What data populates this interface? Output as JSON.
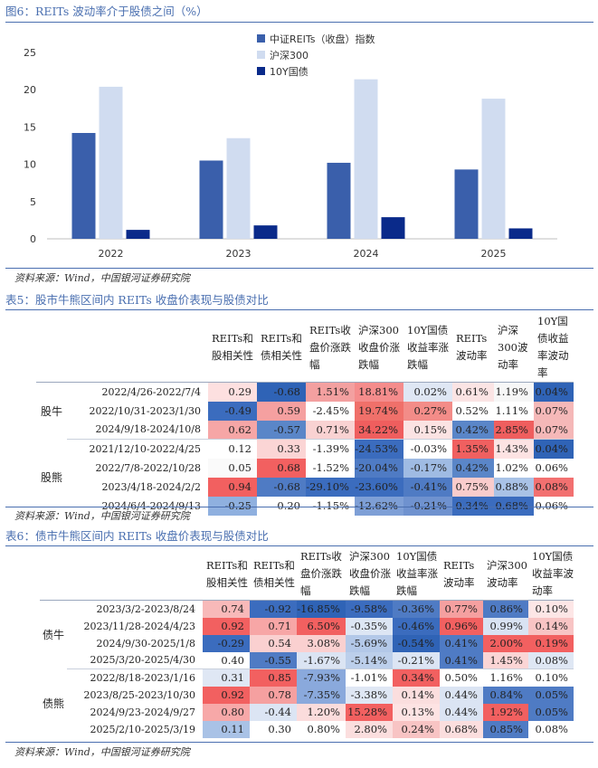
{
  "figure": {
    "title": "图6：REITs 波动率介于股债之间（%）",
    "source": "资料来源：Wind，中国银河证券研究院",
    "chart_data": {
      "type": "bar",
      "categories": [
        "2022",
        "2023",
        "2024",
        "2025"
      ],
      "series": [
        {
          "name": "中证REITs（收盘）指数",
          "color": "#3a5fab",
          "values": [
            14.2,
            10.5,
            10.2,
            9.3
          ]
        },
        {
          "name": "沪深300",
          "color": "#d0dcf0",
          "values": [
            20.4,
            13.5,
            21.4,
            18.8
          ]
        },
        {
          "name": "10Y国债",
          "color": "#0a2a8a",
          "values": [
            1.2,
            1.8,
            2.9,
            1.4
          ]
        }
      ],
      "ylim": [
        0,
        25
      ],
      "yticks": [
        "0",
        "5",
        "10",
        "15",
        "20",
        "25"
      ],
      "legend": "top-right",
      "grid": false
    }
  },
  "table5": {
    "title": "表5：股市牛熊区间内 REITs 收盘价表现与股债对比",
    "source": "资料来源：Wind，中国银河证券研究院",
    "headers": [
      "REITs和股相关性",
      "REITs和债相关性",
      "REITs收盘价涨跌幅",
      "沪深300收盘价涨跌幅",
      "10Y国债收益率涨跌幅",
      "REITs波动率",
      "沪深300波动率",
      "10Y国债收益率波动率"
    ],
    "groups": [
      {
        "label": "股牛",
        "rows": [
          {
            "period": "2022/4/26-2022/7/4",
            "values": [
              "0.29",
              "-0.68",
              "1.51%",
              "18.81%",
              "0.02%",
              "0.61%",
              "1.19%",
              "0.04%"
            ]
          },
          {
            "period": "2022/10/31-2023/1/30",
            "values": [
              "-0.49",
              "0.59",
              "-2.45%",
              "19.74%",
              "0.27%",
              "0.52%",
              "1.11%",
              "0.07%"
            ]
          },
          {
            "period": "2024/9/18-2024/10/8",
            "values": [
              "0.62",
              "-0.57",
              "0.71%",
              "34.22%",
              "0.15%",
              "0.42%",
              "2.85%",
              "0.07%"
            ]
          }
        ]
      },
      {
        "label": "股熊",
        "rows": [
          {
            "period": "2021/12/10-2022/4/25",
            "values": [
              "0.12",
              "0.33",
              "-1.39%",
              "-24.53%",
              "-0.03%",
              "1.35%",
              "1.43%",
              "0.04%"
            ]
          },
          {
            "period": "2022/7/8-2022/10/28",
            "values": [
              "0.05",
              "0.68",
              "-1.52%",
              "-20.04%",
              "-0.17%",
              "0.42%",
              "1.02%",
              "0.06%"
            ]
          },
          {
            "period": "2023/4/18-2024/2/2",
            "values": [
              "0.94",
              "-0.68",
              "-29.10%",
              "-23.60%",
              "-0.41%",
              "0.75%",
              "0.88%",
              "0.08%"
            ]
          },
          {
            "period": "2024/6/4-2024/9/13",
            "values": [
              "-0.25",
              "0.20",
              "-1.15%",
              "-12.62%",
              "-0.21%",
              "0.34%",
              "0.68%",
              "0.06%"
            ]
          }
        ]
      }
    ],
    "colors": [
      [
        [
          "#fde0e0",
          "#2f63b6",
          "#f3a0a0",
          "#f58c8c",
          "#dfe7f4",
          "#fbe4e4",
          "#f7f7f7",
          "#2f63b6"
        ],
        [
          "#3b6cbe",
          "#f5a0a0",
          "#ffffff",
          "#f0706a",
          "#f38c88",
          "#ffffff",
          "#ffffff",
          "#f5b8b8"
        ],
        [
          "#f6a6a6",
          "#5a86c8",
          "#f9d2d2",
          "#ef5e5e",
          "#fbe3e3",
          "#5a86c8",
          "#ef5e5e",
          "#f5b8b8"
        ]
      ],
      [
        [
          "#ffffff",
          "#fbd5d5",
          "#ffffff",
          "#3b6cbe",
          "#ffffff",
          "#f06060",
          "#fde3e3",
          "#2f63b6"
        ],
        [
          "#fafafa",
          "#f26060",
          "#ffffff",
          "#4f7bc4",
          "#9fbbe3",
          "#5a86c8",
          "#ffffff",
          "#ffffff"
        ],
        [
          "#f26060",
          "#4f7bc4",
          "#3b6cbe",
          "#3b6cbe",
          "#4f7bc4",
          "#f9cccc",
          "#a9c2e6",
          "#f27070"
        ],
        [
          "#8fb0df",
          "#ffffff",
          "#ffffff",
          "#7e9fd6",
          "#6f92cf",
          "#3b6cbe",
          "#3b6cbe",
          "#ffffff"
        ]
      ]
    ]
  },
  "table6": {
    "title": "表6：债市牛熊区间内 REITs 收盘价表现与股债对比",
    "source": "资料来源：Wind，中国银河证券研究院",
    "headers": [
      "REITs和股相关性",
      "REITs和债相关性",
      "REITs收盘价涨跌幅",
      "沪深300收盘价涨跌幅",
      "10Y国债收益率涨跌幅",
      "REITs波动率",
      "沪深300波动率",
      "10Y国债收益率波动率"
    ],
    "groups": [
      {
        "label": "债牛",
        "rows": [
          {
            "period": "2023/3/2-2023/8/24",
            "values": [
              "0.74",
              "-0.92",
              "-16.85%",
              "-9.58%",
              "-0.36%",
              "0.77%",
              "0.86%",
              "0.10%"
            ]
          },
          {
            "period": "2023/11/28-2024/4/23",
            "values": [
              "0.92",
              "0.71",
              "6.50%",
              "-0.35%",
              "-0.46%",
              "0.96%",
              "0.99%",
              "0.14%"
            ]
          },
          {
            "period": "2024/9/30-2025/1/8",
            "values": [
              "-0.29",
              "0.54",
              "3.08%",
              "-5.69%",
              "-0.54%",
              "0.41%",
              "2.00%",
              "0.19%"
            ]
          },
          {
            "period": "2025/3/20-2025/4/30",
            "values": [
              "0.40",
              "-0.55",
              "-1.67%",
              "-5.14%",
              "-0.21%",
              "0.41%",
              "1.45%",
              "0.08%"
            ]
          }
        ]
      },
      {
        "label": "债熊",
        "rows": [
          {
            "period": "2022/8/18-2023/1/16",
            "values": [
              "0.31",
              "0.85",
              "-7.93%",
              "-1.01%",
              "0.34%",
              "0.50%",
              "1.16%",
              "0.10%"
            ]
          },
          {
            "period": "2023/8/25-2023/10/30",
            "values": [
              "0.92",
              "0.78",
              "-7.35%",
              "-3.38%",
              "0.14%",
              "0.44%",
              "0.84%",
              "0.05%"
            ]
          },
          {
            "period": "2024/9/23-2024/9/27",
            "values": [
              "0.80",
              "-0.44",
              "1.20%",
              "15.28%",
              "0.13%",
              "0.44%",
              "1.92%",
              "0.05%"
            ]
          },
          {
            "period": "2025/2/10-2025/3/19",
            "values": [
              "0.11",
              "0.30",
              "0.80%",
              "2.80%",
              "0.24%",
              "0.68%",
              "0.85%",
              "0.08%"
            ]
          }
        ]
      }
    ],
    "colors": [
      [
        [
          "#f8b9b9",
          "#3b6cbe",
          "#2f63b6",
          "#3b6cbe",
          "#4f7bc4",
          "#f5a0a0",
          "#4f7bc4",
          "#fde6e6"
        ],
        [
          "#f26060",
          "#f7a6a6",
          "#f26060",
          "#dde6f4",
          "#3b6cbe",
          "#f26060",
          "#d9e3f3",
          "#f8c4c4"
        ],
        [
          "#3b6cbe",
          "#fad0d0",
          "#fad0d0",
          "#b3c8e8",
          "#2f63b6",
          "#4f7bc4",
          "#f26060",
          "#f26060"
        ],
        [
          "#ffffff",
          "#4f7bc4",
          "#dbe4f3",
          "#bccfeb",
          "#dce5f4",
          "#4f7bc4",
          "#fbd5d5",
          "#dfe7f4"
        ]
      ],
      [
        [
          "#dfe7f4",
          "#f26060",
          "#8aa9dc",
          "#ffffff",
          "#f26060",
          "#ffffff",
          "#ffffff",
          "#ffffff"
        ],
        [
          "#f26060",
          "#f5a0a0",
          "#8aa9dc",
          "#dfe7f4",
          "#fbdede",
          "#dbe4f3",
          "#4f7bc4",
          "#4f7bc4"
        ],
        [
          "#f7a8a8",
          "#dce5f4",
          "#fbdcdc",
          "#f26060",
          "#fde3e3",
          "#dbe4f3",
          "#f26060",
          "#4f7bc4"
        ],
        [
          "#a9c2e6",
          "#ffffff",
          "#ffffff",
          "#fbdede",
          "#f8c4c4",
          "#fbdede",
          "#4f7bc4",
          "#ffffff"
        ]
      ]
    ]
  }
}
